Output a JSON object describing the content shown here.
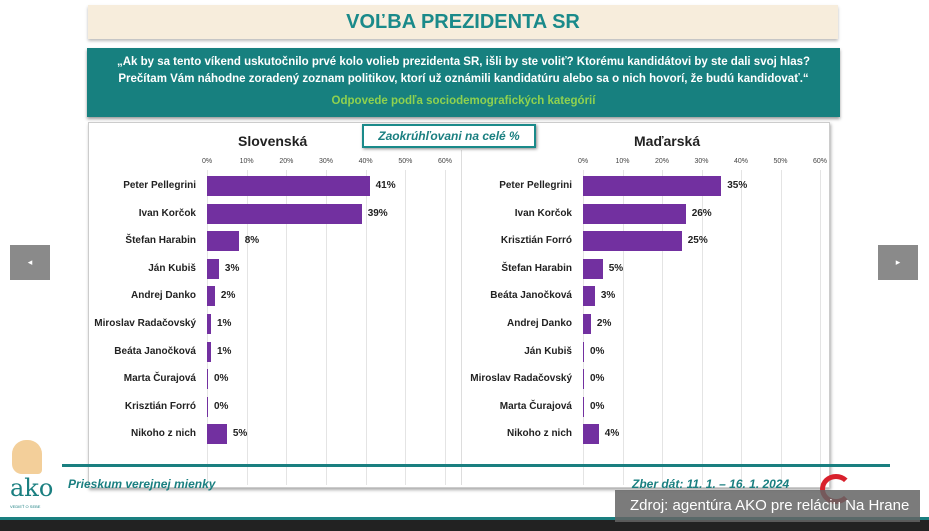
{
  "title": "VOĽBA PREZIDENTA SR",
  "question_line1": "„Ak by sa tento víkend uskutočnilo prvé kolo volieb prezidenta SR, išli by ste voliť? Ktorému kandidátovi by ste dali svoj hlas?",
  "question_line2": "Prečítam Vám náhodne zoradený zoznam politikov, ktorí už oznámili kandidatúru alebo sa o nich hovorí, že budú kandidovať.“",
  "subtitle": "Odpovede podľa sociodemografických kategórií",
  "badge": "Zaokrúhľovani na celé %",
  "footer": {
    "survey": "Prieskum verejnej mienky",
    "dates": "Zber dát: 11. 1. – 16. 1. 2024",
    "logo": "ako",
    "logo_tagline": "VEDIEŤ O SEBE"
  },
  "source": "Zdroj: agentúra AKO pre reláciu Na Hrane",
  "nav": {
    "prev": "◂",
    "next": "▸"
  },
  "colors": {
    "bar": "#7230a0",
    "teal": "#1a7f80"
  },
  "chart_data": [
    {
      "type": "bar",
      "title": "Slovenská",
      "xlim": [
        0,
        60
      ],
      "ticks": [
        "0%",
        "10%",
        "20%",
        "30%",
        "40%",
        "50%",
        "60%"
      ],
      "categories": [
        "Peter Pellegrini",
        "Ivan Korčok",
        "Štefan Harabin",
        "Ján Kubiš",
        "Andrej Danko",
        "Miroslav Radačovský",
        "Beáta Janočková",
        "Marta Čurajová",
        "Krisztián Forró",
        "Nikoho z nich"
      ],
      "values": [
        41,
        39,
        8,
        3,
        2,
        1,
        1,
        0,
        0,
        5
      ],
      "labels": [
        "41%",
        "39%",
        "8%",
        "3%",
        "2%",
        "1%",
        "1%",
        "0%",
        "0%",
        "5%"
      ]
    },
    {
      "type": "bar",
      "title": "Maďarská",
      "xlim": [
        0,
        60
      ],
      "ticks": [
        "0%",
        "10%",
        "20%",
        "30%",
        "40%",
        "50%",
        "60%"
      ],
      "categories": [
        "Peter Pellegrini",
        "Ivan Korčok",
        "Krisztián Forró",
        "Štefan Harabin",
        "Beáta Janočková",
        "Andrej Danko",
        "Ján Kubiš",
        "Miroslav Radačovský",
        "Marta Čurajová",
        "Nikoho z nich"
      ],
      "values": [
        35,
        26,
        25,
        5,
        3,
        2,
        0,
        0,
        0,
        4
      ],
      "labels": [
        "35%",
        "26%",
        "25%",
        "5%",
        "3%",
        "2%",
        "0%",
        "0%",
        "0%",
        "4%"
      ]
    }
  ]
}
